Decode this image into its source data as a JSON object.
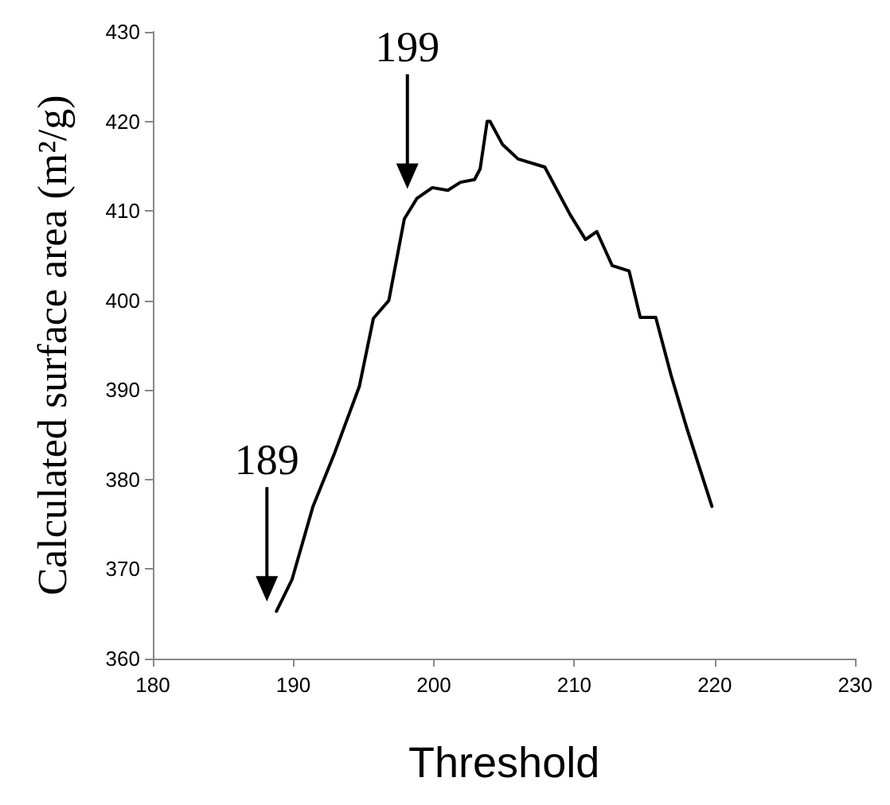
{
  "chart_data": {
    "type": "line",
    "xlabel": "Threshold",
    "ylabel": "Calculated surface area (m²/g)",
    "xlim": [
      180,
      230
    ],
    "xticks": [
      180,
      190,
      200,
      210,
      220,
      230
    ],
    "ylim": [
      360,
      430
    ],
    "yticks": [
      360,
      370,
      380,
      390,
      400,
      410,
      420,
      430
    ],
    "grid": false,
    "marker": "none",
    "line_style": "solid",
    "series": [
      {
        "color": "#000000",
        "x": [
          188.8,
          189.9,
          191.4,
          192.9,
          194.7,
          195.7,
          196.8,
          197.9,
          198.8,
          199.9,
          201,
          201.9,
          202.9,
          203.3,
          203.8,
          204,
          204.9,
          206,
          207.9,
          209.7,
          210.8,
          211.6,
          212.7,
          213.9,
          214.7,
          215.8,
          216.9,
          218,
          219.8
        ],
        "values": [
          365.3,
          368.8,
          377,
          382.8,
          390.4,
          398,
          400,
          409.1,
          411.4,
          412.6,
          412.3,
          413.2,
          413.5,
          414.7,
          420,
          420,
          417.4,
          415.8,
          414.9,
          409.6,
          406.8,
          407.7,
          403.9,
          403.3,
          398.1,
          398.1,
          391.6,
          385.8,
          377
        ]
      }
    ],
    "annotations": [
      {
        "text": "189",
        "x": 188.8,
        "y": 365.3
      },
      {
        "text": "199",
        "x": 198.8,
        "y": 411.4
      }
    ]
  }
}
